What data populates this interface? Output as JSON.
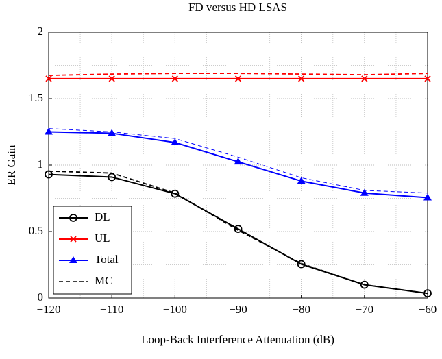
{
  "chart_data": {
    "type": "line",
    "title": "FD versus HD LSAS",
    "xlabel": "Loop-Back Interference Attenuation (dB)",
    "ylabel": "ER Gain",
    "x": [
      -120,
      -110,
      -100,
      -90,
      -80,
      -70,
      -60
    ],
    "xlim": [
      -120,
      -60
    ],
    "xticks": [
      {
        "value": -120,
        "label": "−120"
      },
      {
        "value": -110,
        "label": "−110"
      },
      {
        "value": -100,
        "label": "−100"
      },
      {
        "value": -90,
        "label": "−90"
      },
      {
        "value": -80,
        "label": "−80"
      },
      {
        "value": -70,
        "label": "−70"
      },
      {
        "value": -60,
        "label": "−60"
      }
    ],
    "ylim": [
      0,
      2
    ],
    "yticks": [
      0,
      0.5,
      1,
      1.5,
      2
    ],
    "grid": true,
    "legend": "lower left",
    "mc": {
      "name": "MC",
      "color": "#000000"
    },
    "series": [
      {
        "name": "DL",
        "color": "#000000",
        "marker": "circle",
        "values": [
          0.93,
          0.91,
          0.785,
          0.52,
          0.255,
          0.1,
          0.035
        ],
        "mc_values": [
          0.955,
          0.94,
          0.79,
          0.51,
          0.26,
          0.1,
          0.035
        ]
      },
      {
        "name": "UL",
        "color": "#ff0000",
        "marker": "x",
        "values": [
          1.65,
          1.65,
          1.65,
          1.65,
          1.65,
          1.65,
          1.65
        ],
        "mc_values": [
          1.675,
          1.685,
          1.69,
          1.69,
          1.685,
          1.68,
          1.69
        ]
      },
      {
        "name": "Total",
        "color": "#0000ff",
        "marker": "triangle",
        "values": [
          1.25,
          1.24,
          1.17,
          1.025,
          0.88,
          0.79,
          0.755
        ],
        "mc_values": [
          1.275,
          1.25,
          1.2,
          1.06,
          0.905,
          0.81,
          0.79
        ]
      }
    ]
  }
}
